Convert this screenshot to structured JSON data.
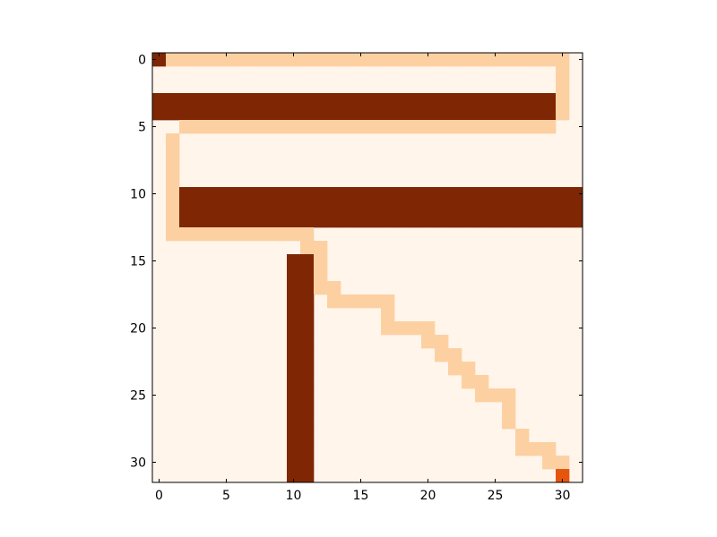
{
  "chart_data": {
    "type": "heatmap",
    "title": "",
    "xlabel": "",
    "ylabel": "",
    "grid_size": 32,
    "xlim": [
      -0.5,
      31.5
    ],
    "ylim": [
      31.5,
      -0.5
    ],
    "grid": false,
    "x_ticks": [
      0,
      5,
      10,
      15,
      20,
      25,
      30
    ],
    "y_ticks": [
      0,
      5,
      10,
      15,
      20,
      25,
      30
    ],
    "x_tick_labels": [
      "0",
      "5",
      "10",
      "15",
      "20",
      "25",
      "30"
    ],
    "y_tick_labels": [
      "0",
      "5",
      "10",
      "15",
      "20",
      "25",
      "30"
    ],
    "colormap": "Oranges",
    "colors": {
      "background": "#fff5eb",
      "path": "#fdd0a2",
      "wall": "#7f2704",
      "start": "#7f2704",
      "goal": "#e6550d"
    },
    "cell_types": {
      "0": "empty",
      "1": "path",
      "2": "wall",
      "3": "start",
      "4": "goal"
    },
    "regions": [
      {
        "type": "path",
        "rows": [
          0,
          0
        ],
        "cols": [
          1,
          30
        ]
      },
      {
        "type": "path",
        "rows": [
          1,
          4
        ],
        "cols": [
          30,
          30
        ]
      },
      {
        "type": "wall",
        "rows": [
          3,
          4
        ],
        "cols": [
          0,
          29
        ]
      },
      {
        "type": "path",
        "rows": [
          5,
          5
        ],
        "cols": [
          2,
          29
        ]
      },
      {
        "type": "path",
        "rows": [
          6,
          13
        ],
        "cols": [
          1,
          1
        ]
      },
      {
        "type": "wall",
        "rows": [
          10,
          12
        ],
        "cols": [
          2,
          31
        ]
      },
      {
        "type": "path",
        "rows": [
          13,
          13
        ],
        "cols": [
          2,
          11
        ]
      },
      {
        "type": "path",
        "rows": [
          14,
          14
        ],
        "cols": [
          11,
          12
        ]
      },
      {
        "type": "path",
        "rows": [
          15,
          17
        ],
        "cols": [
          12,
          12
        ]
      },
      {
        "type": "wall",
        "rows": [
          15,
          31
        ],
        "cols": [
          10,
          11
        ]
      },
      {
        "type": "path",
        "rows": [
          17,
          17
        ],
        "cols": [
          13,
          13
        ]
      },
      {
        "type": "path",
        "rows": [
          18,
          18
        ],
        "cols": [
          13,
          17
        ]
      },
      {
        "type": "path",
        "rows": [
          19,
          20
        ],
        "cols": [
          17,
          17
        ]
      },
      {
        "type": "path",
        "rows": [
          20,
          20
        ],
        "cols": [
          18,
          20
        ]
      },
      {
        "type": "path",
        "rows": [
          21,
          21
        ],
        "cols": [
          20,
          21
        ]
      },
      {
        "type": "path",
        "rows": [
          22,
          22
        ],
        "cols": [
          21,
          22
        ]
      },
      {
        "type": "path",
        "rows": [
          23,
          23
        ],
        "cols": [
          22,
          23
        ]
      },
      {
        "type": "path",
        "rows": [
          24,
          24
        ],
        "cols": [
          23,
          24
        ]
      },
      {
        "type": "path",
        "rows": [
          25,
          25
        ],
        "cols": [
          24,
          26
        ]
      },
      {
        "type": "path",
        "rows": [
          26,
          27
        ],
        "cols": [
          26,
          26
        ]
      },
      {
        "type": "path",
        "rows": [
          28,
          28
        ],
        "cols": [
          27,
          27
        ]
      },
      {
        "type": "path",
        "rows": [
          29,
          29
        ],
        "cols": [
          27,
          29
        ]
      },
      {
        "type": "path",
        "rows": [
          30,
          30
        ],
        "cols": [
          29,
          30
        ]
      },
      {
        "type": "start",
        "rows": [
          0,
          0
        ],
        "cols": [
          0,
          0
        ]
      },
      {
        "type": "goal",
        "rows": [
          31,
          31
        ],
        "cols": [
          30,
          30
        ]
      }
    ]
  }
}
